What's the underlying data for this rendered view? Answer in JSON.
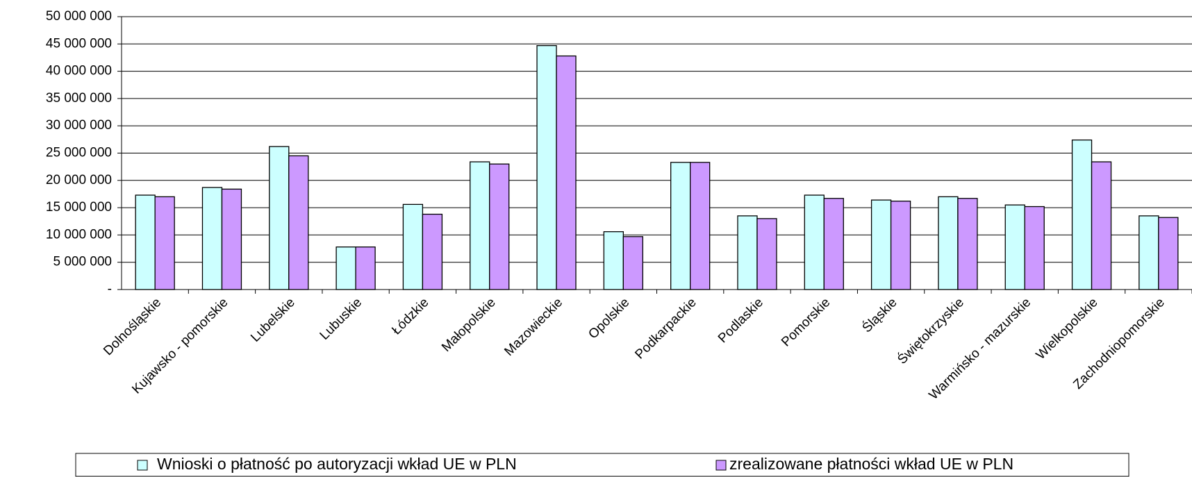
{
  "chart_data": {
    "type": "bar",
    "categories": [
      "Dolnośląskie",
      "Kujawsko - pomorskie",
      "Lubelskie",
      "Lubuskie",
      "Łódzkie",
      "Małopolskie",
      "Mazowieckie",
      "Opolskie",
      "Podkarpackie",
      "Podlaskie",
      "Pomorskie",
      "Śląskie",
      "Świętokrzyskie",
      "Warmińsko - mazurskie",
      "Wielkopolskie",
      "Zachodniopomorskie"
    ],
    "series": [
      {
        "name": "Wnioski o płatność po autoryzacji wkład UE w PLN",
        "color": "#ccffff",
        "values": [
          17300000,
          18700000,
          26200000,
          7800000,
          15600000,
          23400000,
          44700000,
          10600000,
          23300000,
          13500000,
          17300000,
          16400000,
          17000000,
          15500000,
          27400000,
          13500000
        ]
      },
      {
        "name": "zrealizowane płatności wkład UE w PLN",
        "color": "#cc99ff",
        "values": [
          17000000,
          18400000,
          24500000,
          7800000,
          13800000,
          23000000,
          42800000,
          9700000,
          23300000,
          13000000,
          16700000,
          16200000,
          16700000,
          15200000,
          23400000,
          13200000
        ]
      }
    ],
    "ylim": [
      0,
      50000000
    ],
    "yticks": [
      {
        "value": 0,
        "label": "-"
      },
      {
        "value": 5000000,
        "label": "5 000 000"
      },
      {
        "value": 10000000,
        "label": "10 000 000"
      },
      {
        "value": 15000000,
        "label": "15 000 000"
      },
      {
        "value": 20000000,
        "label": "20 000 000"
      },
      {
        "value": 25000000,
        "label": "25 000 000"
      },
      {
        "value": 30000000,
        "label": "30 000 000"
      },
      {
        "value": 35000000,
        "label": "35 000 000"
      },
      {
        "value": 40000000,
        "label": "40 000 000"
      },
      {
        "value": 45000000,
        "label": "45 000 000"
      },
      {
        "value": 50000000,
        "label": "50 000 000"
      }
    ],
    "grid": true,
    "legend": "bottom"
  }
}
